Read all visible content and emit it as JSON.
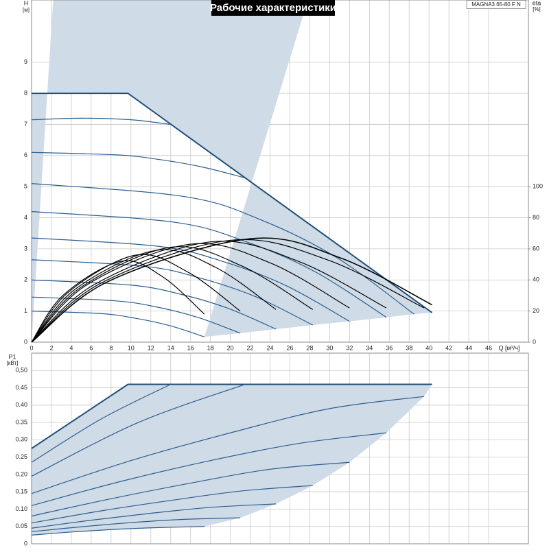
{
  "chart_data": [
    {
      "type": "line",
      "title": "Рабочие характеристики",
      "model": "MAGNA3 65-80 F N",
      "y_label": "H",
      "y_unit": "[м]",
      "y2_label": "eta",
      "y2_unit": "[%]",
      "x_label": "Q [м³/ч]",
      "xlim": [
        0,
        50
      ],
      "xticks": [
        0,
        2,
        4,
        6,
        8,
        10,
        12,
        14,
        16,
        18,
        20,
        22,
        24,
        26,
        28,
        30,
        32,
        34,
        36,
        38,
        40,
        42,
        44,
        46
      ],
      "ylim": [
        0,
        11
      ],
      "yticks": [
        0,
        1,
        2,
        3,
        4,
        5,
        6,
        7,
        8,
        9
      ],
      "y2lim": [
        0,
        220
      ],
      "y2ticks": [
        0,
        20,
        40,
        60,
        80,
        100
      ],
      "grid": true,
      "fill_color": "#cfdbe7",
      "series": [
        {
          "x": [
            0,
            9.7,
            40.3
          ],
          "values": [
            8,
            8,
            0.95
          ],
          "color": "#1f4e79",
          "line_shape": "linear",
          "line_width": 2
        },
        {
          "x": [
            0,
            15.4,
            23.1,
            30.8,
            38.5
          ],
          "values": [
            5.1,
            4.68,
            3.93,
            2.7,
            0.9
          ],
          "color": "#2a5d8f",
          "line_shape": "spline",
          "line_width": 1.2
        },
        {
          "x": [
            0,
            14.28,
            21.42,
            28.56,
            35.7
          ],
          "values": [
            4.2,
            3.86,
            3.25,
            2.26,
            0.8
          ],
          "color": "#2a5d8f",
          "line_shape": "spline",
          "line_width": 1.2
        },
        {
          "x": [
            0,
            12.8,
            19.2,
            25.6,
            32
          ],
          "values": [
            3.35,
            3.08,
            2.6,
            1.82,
            0.67
          ],
          "color": "#2a5d8f",
          "line_shape": "spline",
          "line_width": 1.2
        },
        {
          "x": [
            0,
            11.32,
            16.98,
            22.64,
            28.3
          ],
          "values": [
            2.65,
            2.44,
            2.06,
            1.45,
            0.55
          ],
          "color": "#2a5d8f",
          "line_shape": "spline",
          "line_width": 1.2
        },
        {
          "x": [
            0,
            9.84,
            14.76,
            19.68,
            24.6
          ],
          "values": [
            2.0,
            1.84,
            1.56,
            1.1,
            0.42
          ],
          "color": "#2a5d8f",
          "line_shape": "spline",
          "line_width": 1.2
        },
        {
          "x": [
            0,
            8.4,
            12.6,
            16.8,
            21
          ],
          "values": [
            1.45,
            1.33,
            1.13,
            0.79,
            0.29
          ],
          "color": "#2a5d8f",
          "line_shape": "spline",
          "line_width": 1.2
        },
        {
          "x": [
            0,
            6.96,
            10.44,
            13.92,
            17.4
          ],
          "values": [
            1.0,
            0.92,
            0.77,
            0.53,
            0.17
          ],
          "color": "#2a5d8f",
          "line_shape": "spline",
          "line_width": 1.2
        },
        {
          "x": [
            0,
            5,
            10,
            14
          ],
          "values": [
            7.15,
            7.2,
            7.15,
            7.0
          ],
          "color": "#2a5d8f",
          "line_shape": "spline",
          "line_width": 1.2
        },
        {
          "x": [
            0,
            8.6,
            12.9,
            17.2,
            21.5
          ],
          "values": [
            6.1,
            6.02,
            5.87,
            5.63,
            5.28
          ],
          "color": "#2a5d8f",
          "line_shape": "spline",
          "line_width": 1.2
        },
        {
          "x": [
            0,
            3.15,
            9,
            13.2,
            17.4
          ],
          "values": [
            0,
            30,
            52,
            42,
            18
          ],
          "axis": "y2",
          "color": "#000000",
          "line_shape": "spline",
          "line_width": 1.2
        },
        {
          "x": [
            0,
            3.68,
            10.5,
            15.75,
            21
          ],
          "values": [
            0,
            32,
            56,
            45,
            20
          ],
          "axis": "y2",
          "color": "#000000",
          "line_shape": "spline",
          "line_width": 1.2
        },
        {
          "x": [
            0,
            4.38,
            12.5,
            18.55,
            24.6
          ],
          "values": [
            0,
            34,
            59,
            48,
            21
          ],
          "axis": "y2",
          "color": "#000000",
          "line_shape": "spline",
          "line_width": 1.2
        },
        {
          "x": [
            0,
            4.9,
            14,
            21.15,
            28.3
          ],
          "values": [
            0,
            35,
            61,
            49,
            21
          ],
          "axis": "y2",
          "color": "#000000",
          "line_shape": "spline",
          "line_width": 1.2
        },
        {
          "x": [
            0,
            5.6,
            16,
            24,
            32
          ],
          "values": [
            0,
            37,
            63,
            51,
            22
          ],
          "axis": "y2",
          "color": "#000000",
          "line_shape": "spline",
          "line_width": 1.2
        },
        {
          "x": [
            0,
            6.3,
            18,
            26.85,
            35.7
          ],
          "values": [
            0,
            37,
            64.5,
            52,
            22
          ],
          "axis": "y2",
          "color": "#000000",
          "line_shape": "spline",
          "line_width": 1.2
        },
        {
          "x": [
            0,
            7,
            20,
            29.75,
            39.5
          ],
          "values": [
            0,
            38,
            65.5,
            53,
            22
          ],
          "axis": "y2",
          "color": "#000000",
          "line_shape": "spline",
          "line_width": 1.2
        },
        {
          "x": [
            0,
            7.7,
            22,
            31.15,
            40.3
          ],
          "values": [
            0,
            39,
            66.5,
            54,
            24
          ],
          "axis": "y2",
          "color": "#000000",
          "line_shape": "spline",
          "line_width": 1.6
        }
      ]
    },
    {
      "type": "line",
      "y_label": "P1",
      "y_unit": "[кВт]",
      "xlim": [
        0,
        50
      ],
      "ylim": [
        0,
        0.55
      ],
      "yticks": [
        0,
        0.05,
        {
          "value": 0.1,
          "label": "0.10"
        },
        0.15,
        {
          "value": 0.2,
          "label": "0.20"
        },
        0.25,
        {
          "value": 0.3,
          "label": "0.30"
        },
        0.35,
        {
          "value": 0.4,
          "label": "0.40"
        },
        0.45,
        {
          "value": 0.5,
          "label": "0,50"
        }
      ],
      "grid": true,
      "fill_color": "#cfdbe7",
      "series": [
        {
          "x": [
            0,
            9.7,
            40.3
          ],
          "values": [
            0.275,
            0.46,
            0.46
          ],
          "color": "#1f4e79",
          "line_shape": "linear",
          "line_width": 2
        },
        {
          "x": [
            0,
            7,
            14
          ],
          "values": [
            0.235,
            0.36,
            0.46
          ],
          "color": "#2a5d8f",
          "line_shape": "spline",
          "line_width": 1.2
        },
        {
          "x": [
            0,
            10.75,
            21.5
          ],
          "values": [
            0.195,
            0.35,
            0.46
          ],
          "color": "#2a5d8f",
          "line_shape": "spline",
          "line_width": 1.2
        },
        {
          "x": [
            0,
            10,
            20,
            30,
            39.5
          ],
          "values": [
            0.145,
            0.24,
            0.32,
            0.39,
            0.425
          ],
          "color": "#2a5d8f",
          "line_shape": "spline",
          "line_width": 1.2
        },
        {
          "x": [
            0,
            9,
            18,
            27,
            35.7
          ],
          "values": [
            0.11,
            0.18,
            0.24,
            0.29,
            0.32
          ],
          "color": "#2a5d8f",
          "line_shape": "spline",
          "line_width": 1.2
        },
        {
          "x": [
            0,
            8,
            16,
            24,
            32
          ],
          "values": [
            0.08,
            0.13,
            0.175,
            0.215,
            0.235
          ],
          "color": "#2a5d8f",
          "line_shape": "spline",
          "line_width": 1.2
        },
        {
          "x": [
            0,
            7,
            14,
            21,
            28.3
          ],
          "values": [
            0.06,
            0.095,
            0.125,
            0.152,
            0.168
          ],
          "color": "#2a5d8f",
          "line_shape": "spline",
          "line_width": 1.2
        },
        {
          "x": [
            0,
            6,
            12,
            18,
            24.6
          ],
          "values": [
            0.045,
            0.068,
            0.088,
            0.105,
            0.115
          ],
          "color": "#2a5d8f",
          "line_shape": "spline",
          "line_width": 1.2
        },
        {
          "x": [
            0,
            5,
            10,
            15,
            21
          ],
          "values": [
            0.035,
            0.049,
            0.061,
            0.07,
            0.075
          ],
          "color": "#2a5d8f",
          "line_shape": "spline",
          "line_width": 1.2
        },
        {
          "x": [
            0,
            4,
            8,
            12,
            17.4
          ],
          "values": [
            0.025,
            0.034,
            0.041,
            0.046,
            0.05
          ],
          "color": "#2a5d8f",
          "line_shape": "spline",
          "line_width": 1.2
        }
      ]
    }
  ]
}
